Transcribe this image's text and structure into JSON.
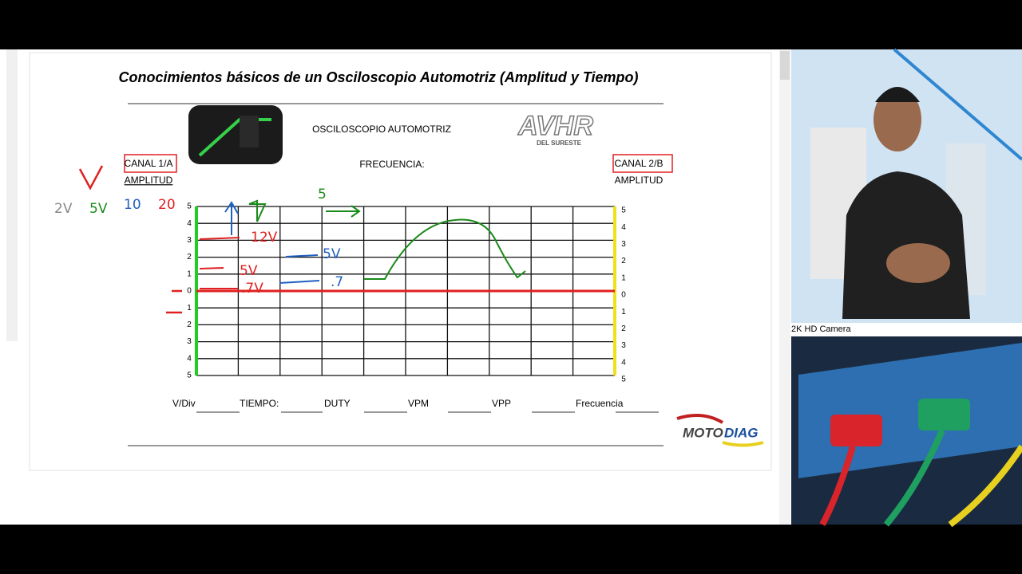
{
  "document": {
    "title": "Conocimientos básicos de un  Osciloscopio Automotriz  (Amplitud y Tiempo)",
    "heading": "OSCILOSCOPIO AUTOMOTRIZ",
    "frequency_label": "FRECUENCIA:",
    "channel_a": {
      "name": "CANAL 1/A",
      "label": "AMPLITUD"
    },
    "channel_b": {
      "name": "CANAL 2/B",
      "label": "AMPLITUD"
    },
    "left_scale": [
      "5",
      "4",
      "3",
      "2",
      "1",
      "0",
      "1",
      "2",
      "3",
      "4",
      "5"
    ],
    "right_scale": [
      "5",
      "4",
      "3",
      "2",
      "1",
      "0",
      "1",
      "2",
      "3",
      "4",
      "5"
    ],
    "fields": [
      "V/Div",
      "TIEMPO:",
      "DUTY",
      "VPM",
      "VPP",
      "Frecuencia"
    ],
    "brand": {
      "moto": "MOTO",
      "diag": "DIAG"
    },
    "logo": "DEL SURESTE",
    "handwriting": {
      "volt_div": [
        "2V",
        "5V",
        "10",
        "20"
      ],
      "levels": [
        "12V",
        "5V",
        ".7V",
        "5",
        "5V",
        ".7"
      ]
    }
  },
  "camera": {
    "label": "2K HD Camera"
  }
}
